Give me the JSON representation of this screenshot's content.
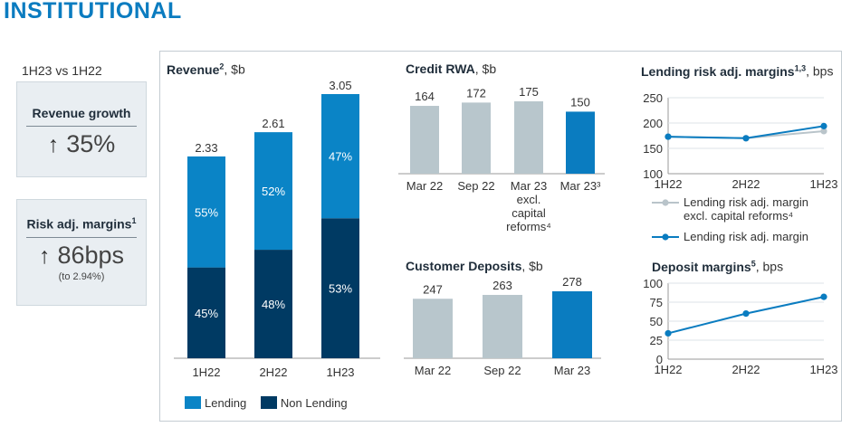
{
  "header": {
    "title": "INSTITUTIONAL",
    "period": "1H23 vs 1H22"
  },
  "kpis": [
    {
      "label": "Revenue growth",
      "arrow": "↑",
      "value": "35%",
      "note": ""
    },
    {
      "label": "Risk adj. margins",
      "sup": "1",
      "arrow": "↑",
      "value": "86bps",
      "note": "(to 2.94%)"
    }
  ],
  "colors": {
    "lending": "#0a84c6",
    "non_lending": "#003a63",
    "grey_bar": "#b8c6cc",
    "blue_bar": "#0a7cc0",
    "line": "#0a7cc0",
    "grey_line": "#b9c4ca",
    "title_blue": "#0b7cc0"
  },
  "legend": {
    "lending": "Lending",
    "non_lending": "Non Lending"
  },
  "chart_data": [
    {
      "id": "revenue",
      "type": "bar",
      "stacked": true,
      "title": "Revenue",
      "title_sup": "2",
      "unit": ", $b",
      "categories": [
        "1H22",
        "2H22",
        "1H23"
      ],
      "totals": [
        "2.33",
        "2.61",
        "3.05"
      ],
      "total_values": [
        2.33,
        2.61,
        3.05
      ],
      "series": [
        {
          "name": "Non Lending",
          "pct": [
            45,
            48,
            53
          ],
          "labels": [
            "45%",
            "48%",
            "53%"
          ]
        },
        {
          "name": "Lending",
          "pct": [
            55,
            52,
            47
          ],
          "labels": [
            "55%",
            "52%",
            "47%"
          ]
        }
      ],
      "ylim": [
        0,
        3.05
      ]
    },
    {
      "id": "credit_rwa",
      "type": "bar",
      "title": "Credit RWA",
      "unit": ", $b",
      "categories": [
        [
          "Mar 22"
        ],
        [
          "Sep 22"
        ],
        [
          "Mar 23",
          "excl.",
          "capital",
          "reforms⁴"
        ],
        [
          "Mar 23³"
        ]
      ],
      "values": [
        164,
        172,
        175,
        150
      ],
      "value_labels": [
        "164",
        "172",
        "175",
        "150"
      ],
      "highlight": [
        false,
        false,
        false,
        true
      ],
      "ylim": [
        0,
        175
      ]
    },
    {
      "id": "customer_deposits",
      "type": "bar",
      "title": "Customer Deposits",
      "unit": ", $b",
      "categories": [
        "Mar 22",
        "Sep 22",
        "Mar 23"
      ],
      "values": [
        247,
        263,
        278
      ],
      "value_labels": [
        "247",
        "263",
        "278"
      ],
      "highlight": [
        false,
        false,
        true
      ],
      "ylim": [
        0,
        278
      ]
    },
    {
      "id": "lending_margins",
      "type": "line",
      "title": "Lending risk adj. margins",
      "title_sup": "1,3",
      "unit": ", bps",
      "x": [
        "1H22",
        "2H22",
        "1H23"
      ],
      "yticks": [
        "250",
        "200",
        "150",
        "100"
      ],
      "ylim": [
        100,
        250
      ],
      "series": [
        {
          "name": "Lending risk adj. margin excl. capital reforms⁴",
          "name_lines": [
            "Lending risk adj. margin",
            "excl. capital reforms⁴"
          ],
          "values": [
            173,
            170,
            184
          ],
          "color": "grey"
        },
        {
          "name": "Lending risk adj. margin",
          "name_lines": [
            "Lending risk adj. margin"
          ],
          "values": [
            173,
            170,
            194
          ],
          "color": "blue"
        }
      ]
    },
    {
      "id": "deposit_margins",
      "type": "line",
      "title": "Deposit margins",
      "title_sup": "5",
      "unit": ", bps",
      "x": [
        "1H22",
        "2H22",
        "1H23"
      ],
      "yticks": [
        "100",
        "75",
        "50",
        "25",
        "0"
      ],
      "ylim": [
        0,
        100
      ],
      "series": [
        {
          "name": "",
          "values": [
            34,
            60,
            82
          ],
          "color": "blue"
        }
      ]
    }
  ]
}
